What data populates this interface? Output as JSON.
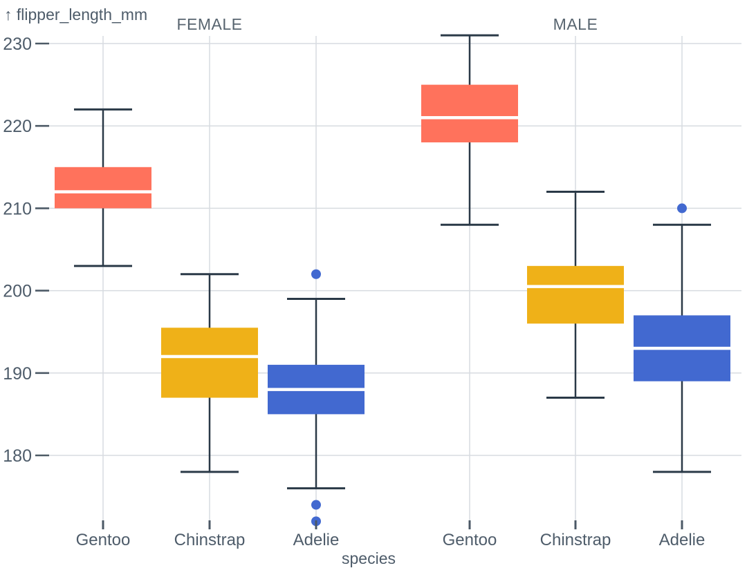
{
  "page": {
    "background": "#ffffff"
  },
  "chart_data": {
    "type": "boxplot",
    "title": "",
    "ylabel": "flipper_length_mm",
    "xlabel": "species",
    "y_axis_arrow": "↑",
    "y_ticks": [
      230,
      220,
      210,
      200,
      190,
      180
    ],
    "ylim": [
      171,
      232
    ],
    "grid": true,
    "categories": [
      "Gentoo",
      "Chinstrap",
      "Adelie"
    ],
    "colors": {
      "Gentoo": "#ff725c",
      "Chinstrap": "#efb118",
      "Adelie": "#4269d0"
    },
    "facets": [
      {
        "label": "FEMALE",
        "boxes": [
          {
            "category": "Gentoo",
            "color": "#ff725c",
            "whisker_low": 203,
            "q1": 210,
            "median": 212,
            "q3": 215,
            "whisker_high": 222,
            "outliers": []
          },
          {
            "category": "Chinstrap",
            "color": "#efb118",
            "whisker_low": 178,
            "q1": 187,
            "median": 192,
            "q3": 195.5,
            "whisker_high": 202,
            "outliers": []
          },
          {
            "category": "Adelie",
            "color": "#4269d0",
            "whisker_low": 176,
            "q1": 185,
            "median": 188,
            "q3": 191,
            "whisker_high": 199,
            "outliers": [
              202,
              174,
              172
            ]
          }
        ]
      },
      {
        "label": "MALE",
        "boxes": [
          {
            "category": "Gentoo",
            "color": "#ff725c",
            "whisker_low": 208,
            "q1": 218,
            "median": 221,
            "q3": 225,
            "whisker_high": 231,
            "outliers": []
          },
          {
            "category": "Chinstrap",
            "color": "#efb118",
            "whisker_low": 187,
            "q1": 196,
            "median": 200.5,
            "q3": 203,
            "whisker_high": 212,
            "outliers": []
          },
          {
            "category": "Adelie",
            "color": "#4269d0",
            "whisker_low": 178,
            "q1": 189,
            "median": 193,
            "q3": 197,
            "whisker_high": 208,
            "outliers": [
              210
            ]
          }
        ]
      }
    ],
    "style": {
      "grid_color": "#d7dbe0",
      "axis_tick_color": "#4d5a66",
      "x_tick_color": "#4b5866",
      "whisker_color": "#2a3947",
      "text_color": "#4e5c6a",
      "median_color": "#ffffff"
    }
  }
}
